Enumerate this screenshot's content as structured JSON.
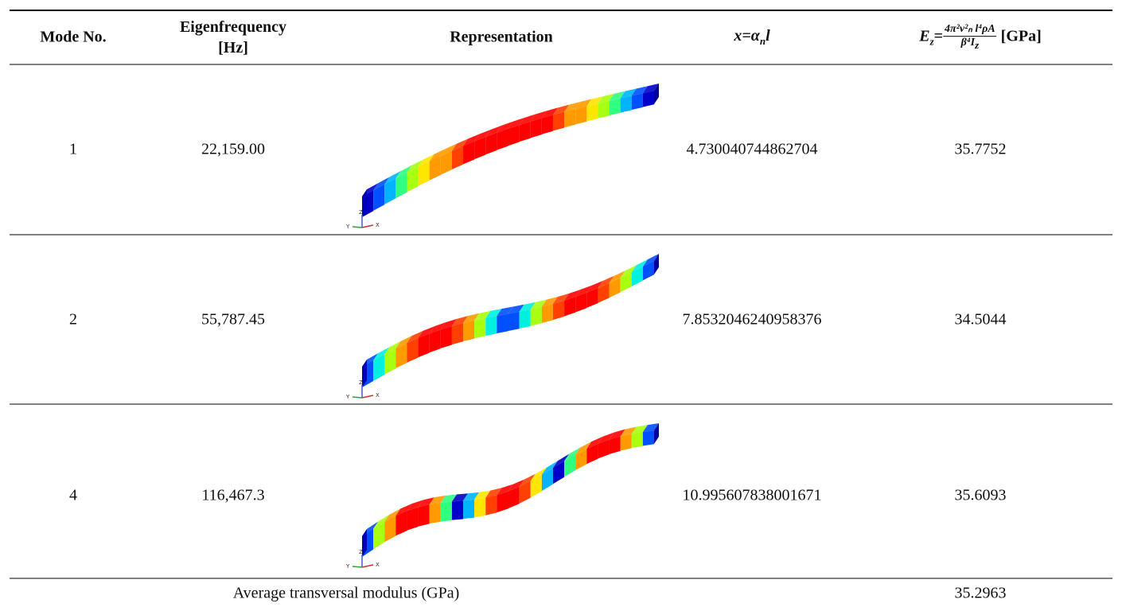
{
  "table": {
    "header": {
      "mode": "Mode No.",
      "frequency": "Eigenfrequency [Hz]",
      "representation": "Representation",
      "x": {
        "lhs": "x=α",
        "sub": "n",
        "tail": "l"
      },
      "ez": {
        "lhs": "E",
        "lhs_sub": "z",
        "eq": "=",
        "numerator": "4π²ν²ₙ l⁴ρA",
        "denominator": "β⁴I",
        "denominator_sub": "z",
        "unit": "[GPa]"
      }
    },
    "rows": [
      {
        "mode": "1",
        "frequency": "22,159.00",
        "x": "4.730040744862704",
        "ez": "35.7752"
      },
      {
        "mode": "2",
        "frequency": "55,787.45",
        "x": "7.8532046240958376",
        "ez": "34.5044"
      },
      {
        "mode": "4",
        "frequency": "116,467.3",
        "x": "10.995607838001671",
        "ez": "35.6093"
      }
    ],
    "triad": {
      "x": "X",
      "y": "Y",
      "z": "Z"
    },
    "footer": {
      "label": "Average transversal modulus (GPa)",
      "value": "35.2963"
    }
  }
}
